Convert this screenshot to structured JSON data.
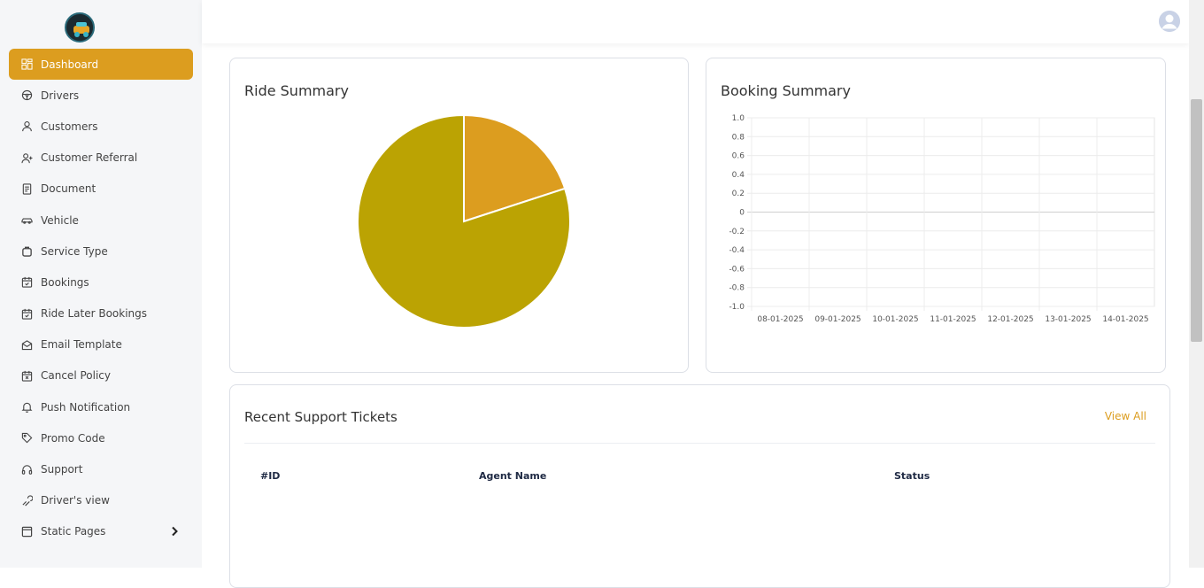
{
  "sidebar": {
    "items": [
      {
        "label": "Dashboard",
        "icon": "dashboard-icon",
        "active": true
      },
      {
        "label": "Drivers",
        "icon": "steering-wheel-icon"
      },
      {
        "label": "Customers",
        "icon": "user-icon"
      },
      {
        "label": "Customer Referral",
        "icon": "user-plus-icon"
      },
      {
        "label": "Document",
        "icon": "document-icon"
      },
      {
        "label": "Vehicle",
        "icon": "car-icon"
      },
      {
        "label": "Service Type",
        "icon": "service-type-icon"
      },
      {
        "label": "Bookings",
        "icon": "calendar-check-icon"
      },
      {
        "label": "Ride Later Bookings",
        "icon": "calendar-clock-icon"
      },
      {
        "label": "Email Template",
        "icon": "envelope-icon"
      },
      {
        "label": "Cancel Policy",
        "icon": "calendar-x-icon"
      },
      {
        "label": "Push Notification",
        "icon": "bell-icon"
      },
      {
        "label": "Promo Code",
        "icon": "tag-icon"
      },
      {
        "label": "Support",
        "icon": "headset-icon"
      },
      {
        "label": "Driver's view",
        "icon": "steering-view-icon"
      },
      {
        "label": "Static Pages",
        "icon": "page-icon",
        "has_children": true
      }
    ]
  },
  "ride_summary": {
    "title": "Ride Summary"
  },
  "booking_summary": {
    "title": "Booking Summary"
  },
  "support_tickets": {
    "title": "Recent Support Tickets",
    "view_all": "View All",
    "columns": [
      "#ID",
      "Agent Name",
      "Status"
    ]
  },
  "chart_data": [
    {
      "type": "pie",
      "title": "Ride Summary",
      "values": [
        20,
        80
      ],
      "colors": [
        "#dc9d1f",
        "#bba303"
      ]
    },
    {
      "type": "line",
      "title": "Booking Summary",
      "categories": [
        "08-01-2025",
        "09-01-2025",
        "10-01-2025",
        "11-01-2025",
        "12-01-2025",
        "13-01-2025",
        "14-01-2025"
      ],
      "series": [],
      "yticks": [
        "1.0",
        "0.8",
        "0.6",
        "0.4",
        "0.2",
        "0",
        "-0.2",
        "-0.4",
        "-0.6",
        "-0.8",
        "-1.0"
      ],
      "ylim": [
        -1.0,
        1.0
      ],
      "grid": true
    }
  ],
  "colors": {
    "accent": "#dc9d1f",
    "pie_large": "#bba303"
  }
}
